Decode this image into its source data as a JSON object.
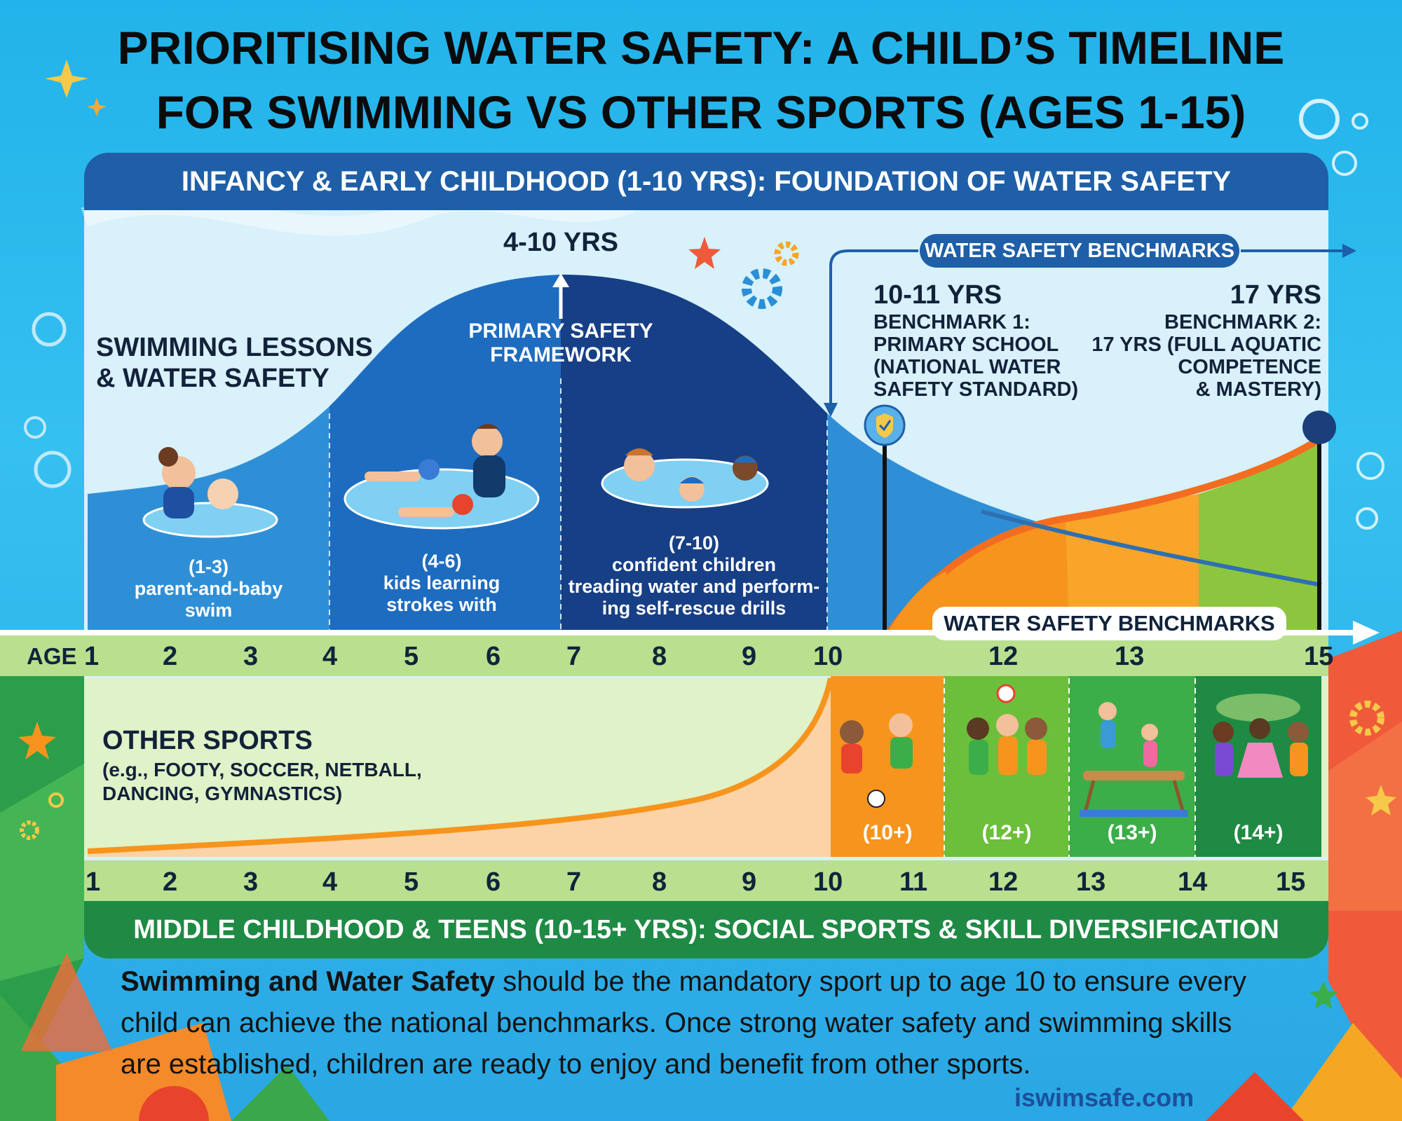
{
  "title": {
    "line1": "PRIORITISING WATER SAFETY: A CHILD’S TIMELINE",
    "line2": "FOR SWIMMING VS OTHER SPORTS (AGES 1-15)"
  },
  "top_banner": "INFANCY & EARLY CHILDHOOD (1-10 YRS): FOUNDATION OF WATER SAFETY",
  "bottom_banner": "MIDDLE CHILDHOOD & TEENS (10-15+ YRS): SOCIAL SPORTS & SKILL DIVERSIFICATION",
  "swimming": {
    "heading_line1": "SWIMMING LESSONS",
    "heading_line2": "& WATER SAFETY",
    "peak_label": "4-10 YRS",
    "framework_line1": "PRIMARY SAFETY",
    "framework_line2": "FRAMEWORK",
    "stages": [
      {
        "age": "(1-3)",
        "line1": "parent-and-baby",
        "line2": "swim"
      },
      {
        "age": "(4-6)",
        "line1": "kids learning",
        "line2": "strokes with"
      },
      {
        "age": "(7-10)",
        "line1": "confident children",
        "line2": "treading water and perform-",
        "line3": "ing self-rescue drills"
      }
    ]
  },
  "benchmarks": {
    "pill": "WATER SAFETY BENCHMARKS",
    "pill_lower": "WATER SAFETY BENCHMARKS",
    "b1": {
      "age": "10-11 YRS",
      "line1": "BENCHMARK 1:",
      "line2": "PRIMARY SCHOOL",
      "line3": "(NATIONAL WATER",
      "line4": "SAFETY STANDARD)"
    },
    "b2": {
      "age": "17 YRS",
      "line1": "BENCHMARK 2:",
      "line2": "17 YRS (FULL AQUATIC",
      "line3": "COMPETENCE",
      "line4": "& MASTERY)"
    }
  },
  "age_axis_top": {
    "label": "AGE",
    "ticks": [
      "1",
      "2",
      "3",
      "4",
      "5",
      "6",
      "7",
      "8",
      "9",
      "10",
      "12",
      "13",
      "15"
    ]
  },
  "age_axis_bottom": {
    "ticks": [
      "1",
      "2",
      "3",
      "4",
      "5",
      "6",
      "7",
      "8",
      "9",
      "10",
      "11",
      "12",
      "13",
      "14",
      "15"
    ]
  },
  "other_sports": {
    "heading": "OTHER SPORTS",
    "sub_line1": "(e.g., FOOTY, SOCCER, NETBALL,",
    "sub_line2": "DANCING, GYMNASTICS)",
    "stages": [
      "(10+)",
      "(12+)",
      "(13+)",
      "(14+)"
    ]
  },
  "footer": {
    "bold": "Swimming and Water Safety",
    "text1": " should be the mandatory sport up to age 10 to ensure every",
    "text2": "child can achieve the national benchmarks. Once strong water safety and swimming skills",
    "text3": "are established, children are ready to enjoy and benefit from other sports."
  },
  "website": "iswimsafe.com",
  "colors": {
    "water_light": "#2f8fd6",
    "water_mid": "#1e6cbf",
    "water_dark": "#173f86",
    "orange": "#f7941d",
    "light_green": "#8cc63f",
    "green": "#3cae49",
    "dark_green": "#1f8a44"
  }
}
